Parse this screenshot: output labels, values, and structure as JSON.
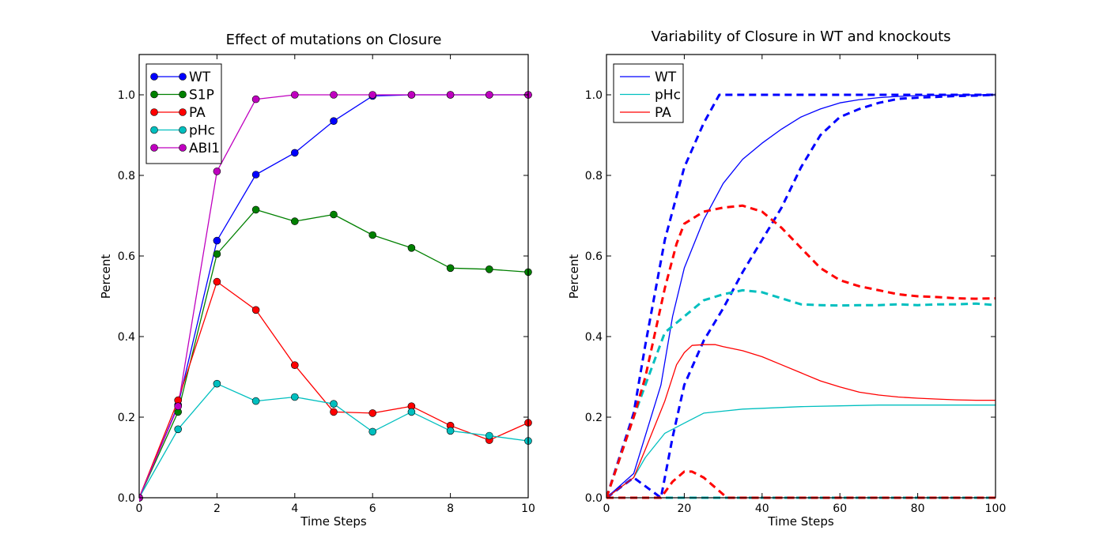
{
  "chart_data": [
    {
      "type": "line",
      "title": "Effect of mutations on Closure",
      "xlabel": "Time Steps",
      "ylabel": "Percent",
      "xlim": [
        0,
        10
      ],
      "ylim": [
        0,
        1.1
      ],
      "xticks": [
        0,
        2,
        4,
        6,
        8,
        10
      ],
      "yticks": [
        0.0,
        0.2,
        0.4,
        0.6,
        0.8,
        1.0
      ],
      "grid": false,
      "legend_position": "top-left",
      "x": [
        0,
        1,
        2,
        3,
        4,
        5,
        6,
        7,
        8,
        9,
        10
      ],
      "series": [
        {
          "name": "WT",
          "color": "#0000ff",
          "marker": "circle",
          "values": [
            0.0,
            0.23,
            0.638,
            0.802,
            0.856,
            0.935,
            0.997,
            1.0,
            1.0,
            1.0,
            1.0
          ]
        },
        {
          "name": "S1P",
          "color": "#008000",
          "marker": "circle",
          "values": [
            0.0,
            0.213,
            0.605,
            0.715,
            0.686,
            0.703,
            0.652,
            0.62,
            0.57,
            0.567,
            0.56
          ]
        },
        {
          "name": "PA",
          "color": "#ff0000",
          "marker": "circle",
          "values": [
            0.0,
            0.242,
            0.536,
            0.466,
            0.329,
            0.213,
            0.21,
            0.227,
            0.179,
            0.143,
            0.186
          ]
        },
        {
          "name": "pHc",
          "color": "#00bfbf",
          "marker": "circle",
          "values": [
            0.0,
            0.17,
            0.283,
            0.24,
            0.25,
            0.233,
            0.164,
            0.213,
            0.166,
            0.154,
            0.141
          ]
        },
        {
          "name": "ABI1",
          "color": "#bf00bf",
          "marker": "circle",
          "values": [
            0.0,
            0.227,
            0.81,
            0.989,
            1.0,
            1.0,
            1.0,
            1.0,
            1.0,
            1.0,
            1.0
          ]
        }
      ]
    },
    {
      "type": "line",
      "title": "Variability of Closure in WT and knockouts",
      "xlabel": "Time Steps",
      "ylabel": "Percent",
      "xlim": [
        0,
        100
      ],
      "ylim": [
        0,
        1.1
      ],
      "xticks": [
        0,
        20,
        40,
        60,
        80,
        100
      ],
      "yticks": [
        0.0,
        0.2,
        0.4,
        0.6,
        0.8,
        1.0
      ],
      "grid": false,
      "legend_position": "top-left",
      "series": [
        {
          "name": "WT",
          "color": "#0000ff",
          "style": "solid",
          "x": [
            0,
            7,
            14,
            17,
            20,
            25,
            30,
            35,
            40,
            45,
            50,
            55,
            60,
            65,
            70,
            75,
            80,
            85,
            90,
            95,
            100
          ],
          "values": [
            0.0,
            0.06,
            0.28,
            0.45,
            0.57,
            0.69,
            0.78,
            0.84,
            0.88,
            0.915,
            0.945,
            0.965,
            0.98,
            0.988,
            0.993,
            0.996,
            0.998,
            0.999,
            1.0,
            1.0,
            1.0
          ]
        },
        {
          "legend": false,
          "color": "#0000ff",
          "style": "dashed",
          "x": [
            0,
            7,
            10,
            15,
            20,
            25,
            29,
            40,
            100
          ],
          "values": [
            0.0,
            0.21,
            0.38,
            0.64,
            0.82,
            0.93,
            1.0,
            1.0,
            1.0
          ]
        },
        {
          "legend": false,
          "color": "#0000ff",
          "style": "dashed",
          "x": [
            0,
            7,
            14,
            17,
            20,
            25,
            30,
            35,
            40,
            45,
            50,
            55,
            60,
            65,
            70,
            75,
            80,
            85,
            90,
            95,
            100
          ],
          "values": [
            0.0,
            0.05,
            0.0,
            0.15,
            0.28,
            0.39,
            0.47,
            0.56,
            0.64,
            0.72,
            0.82,
            0.9,
            0.945,
            0.965,
            0.98,
            0.99,
            0.993,
            0.995,
            0.997,
            0.998,
            1.0
          ]
        },
        {
          "name": "pHc",
          "color": "#00bfbf",
          "style": "solid",
          "x": [
            0,
            7,
            10,
            15,
            20,
            25,
            30,
            35,
            40,
            50,
            60,
            70,
            80,
            90,
            100
          ],
          "values": [
            0.0,
            0.05,
            0.1,
            0.16,
            0.185,
            0.21,
            0.215,
            0.22,
            0.222,
            0.226,
            0.228,
            0.23,
            0.23,
            0.23,
            0.23
          ]
        },
        {
          "legend": false,
          "color": "#00bfbf",
          "style": "dashed",
          "x": [
            0,
            7,
            10,
            15,
            20,
            25,
            30,
            35,
            40,
            45,
            50,
            55,
            60,
            65,
            70,
            75,
            80,
            85,
            90,
            95,
            100
          ],
          "values": [
            0.0,
            0.2,
            0.28,
            0.41,
            0.45,
            0.49,
            0.505,
            0.515,
            0.51,
            0.495,
            0.48,
            0.478,
            0.477,
            0.478,
            0.478,
            0.48,
            0.478,
            0.48,
            0.48,
            0.482,
            0.478
          ]
        },
        {
          "legend": false,
          "color": "#00bfbf",
          "style": "dashed",
          "x": [
            0,
            7,
            100
          ],
          "values": [
            0.0,
            0.0,
            0.0
          ]
        },
        {
          "name": "PA",
          "color": "#ff0000",
          "style": "solid",
          "x": [
            0,
            7,
            10,
            15,
            18,
            20,
            22,
            25,
            28,
            30,
            35,
            40,
            45,
            50,
            55,
            60,
            65,
            70,
            75,
            80,
            85,
            90,
            95,
            100
          ],
          "values": [
            0.0,
            0.05,
            0.12,
            0.24,
            0.33,
            0.36,
            0.378,
            0.38,
            0.38,
            0.375,
            0.365,
            0.35,
            0.33,
            0.31,
            0.29,
            0.275,
            0.262,
            0.255,
            0.25,
            0.247,
            0.245,
            0.243,
            0.242,
            0.242
          ]
        },
        {
          "legend": false,
          "color": "#ff0000",
          "style": "dashed",
          "x": [
            0,
            7,
            10,
            15,
            18,
            20,
            25,
            30,
            35,
            40,
            45,
            50,
            55,
            60,
            65,
            70,
            75,
            80,
            85,
            90,
            95,
            100
          ],
          "values": [
            0.0,
            0.2,
            0.3,
            0.52,
            0.63,
            0.68,
            0.71,
            0.72,
            0.725,
            0.71,
            0.67,
            0.62,
            0.57,
            0.54,
            0.525,
            0.515,
            0.505,
            0.5,
            0.498,
            0.495,
            0.494,
            0.495
          ]
        },
        {
          "legend": false,
          "color": "#ff0000",
          "style": "dashed",
          "x": [
            0,
            14,
            17,
            20,
            22,
            25,
            28,
            31,
            100
          ],
          "values": [
            0.0,
            0.0,
            0.04,
            0.065,
            0.065,
            0.05,
            0.025,
            0.0,
            0.0
          ]
        }
      ]
    }
  ]
}
